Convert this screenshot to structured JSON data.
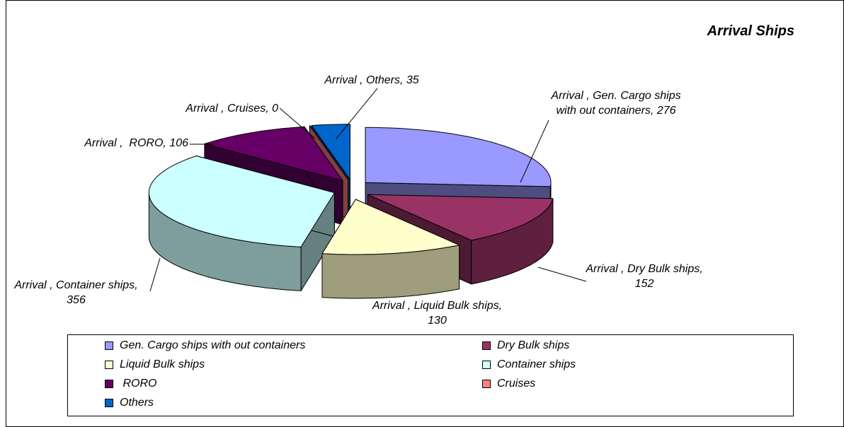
{
  "chart_data": {
    "type": "pie3d",
    "title": "Arrival Ships",
    "series_name": "Arrival",
    "categories": [
      "Gen. Cargo ships with out containers",
      "Dry Bulk ships",
      "Liquid Bulk ships",
      "Container ships",
      " RORO",
      "Cruises",
      "Others"
    ],
    "values": [
      276,
      152,
      130,
      356,
      106,
      0,
      35
    ],
    "value_labels": [
      "Arrival , Gen. Cargo ships with out containers, 276",
      "Arrival ,  Dry Bulk ships, 152",
      "Arrival , Liquid Bulk ships, 130",
      "Arrival , Container ships, 356",
      "Arrival ,  RORO, 106",
      "Arrival , Cruises, 0",
      "Arrival , Others, 35"
    ],
    "colors": [
      "#9999ff",
      "#993366",
      "#ffffcc",
      "#ccffff",
      "#660066",
      "#ff8080",
      "#0066cc"
    ],
    "legend": "bottom",
    "exploded": true
  }
}
